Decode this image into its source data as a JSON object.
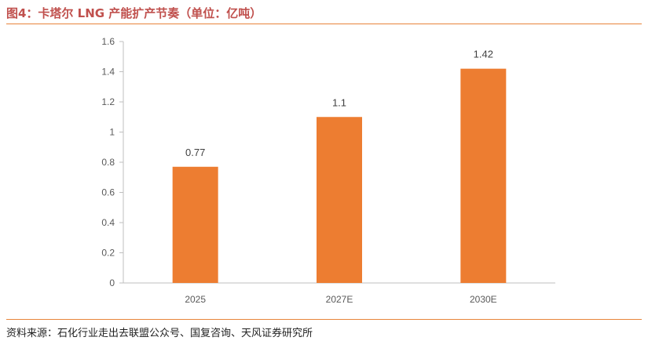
{
  "figure": {
    "title": "图4：卡塔尔 LNG 产能扩产节奏（单位：亿吨）",
    "source": "资料来源：石化行业走出去联盟公众号、国复咨询、天风证券研究所"
  },
  "chart_data": {
    "type": "bar",
    "categories": [
      "2025",
      "2027E",
      "2030E"
    ],
    "values": [
      0.77,
      1.1,
      1.42
    ],
    "data_labels": [
      "0.77",
      "1.1",
      "1.42"
    ],
    "title": "",
    "xlabel": "",
    "ylabel": "",
    "ylim": [
      0,
      1.6
    ],
    "yticks": [
      0,
      0.2,
      0.4,
      0.6,
      0.8,
      1,
      1.2,
      1.4,
      1.6
    ],
    "ytick_labels": [
      "0",
      "0.2",
      "0.4",
      "0.6",
      "0.8",
      "1",
      "1.2",
      "1.4",
      "1.6"
    ],
    "grid": false,
    "legend": "none",
    "bar_color": "#ed7d31",
    "axis_color": "#bfbfbf"
  }
}
